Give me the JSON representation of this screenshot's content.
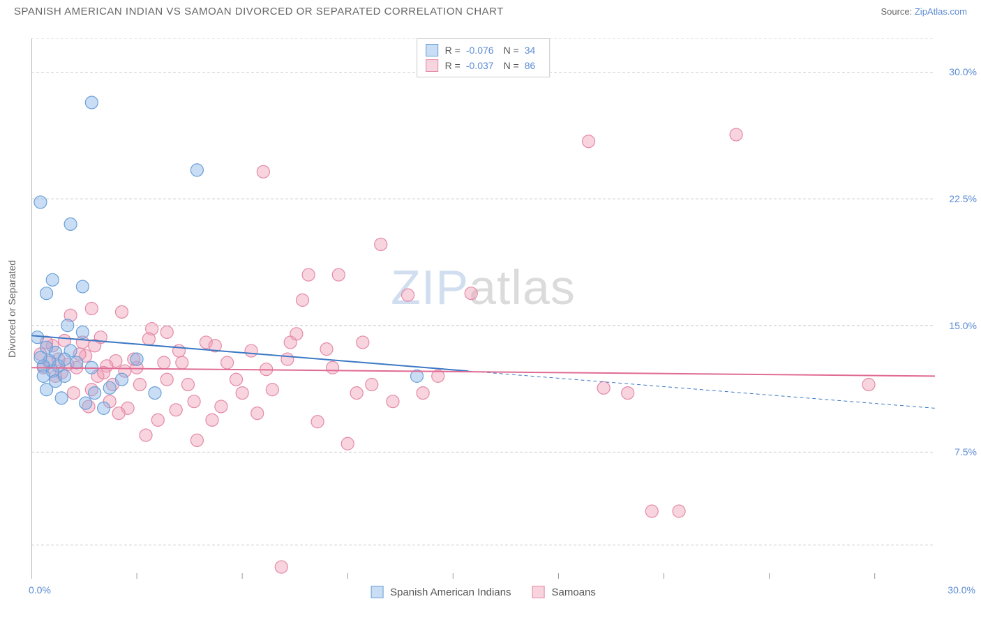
{
  "title": "SPANISH AMERICAN INDIAN VS SAMOAN DIVORCED OR SEPARATED CORRELATION CHART",
  "source_label": "Source: ",
  "source_link": "ZipAtlas.com",
  "ylabel": "Divorced or Separated",
  "watermark": {
    "zip": "ZIP",
    "atlas": "atlas"
  },
  "chart": {
    "type": "scatter",
    "xlim": [
      0,
      30
    ],
    "ylim": [
      0,
      32
    ],
    "x_origin_label": "0.0%",
    "x_max_label": "30.0%",
    "y_ticks": [
      7.5,
      15.0,
      22.5,
      30.0
    ],
    "y_tick_labels": [
      "7.5%",
      "15.0%",
      "22.5%",
      "30.0%"
    ],
    "x_minor_ticks": [
      3.5,
      7,
      10.5,
      14,
      17.5,
      21,
      24.5,
      28
    ],
    "grid_y": [
      2.0,
      7.5,
      15.0,
      22.5,
      30.0,
      32.0
    ],
    "grid_color": "#cccccc",
    "background_color": "#ffffff",
    "point_radius": 9,
    "series": [
      {
        "name": "Spanish American Indians",
        "fill": "rgba(135,180,230,0.45)",
        "stroke": "#6aa0d8",
        "R": "-0.076",
        "N": "34",
        "trend": {
          "x1": 0,
          "y1": 14.4,
          "x2": 14.5,
          "y2": 12.3,
          "x2_dash": 30,
          "y2_dash": 10.1,
          "color": "#3b78c4",
          "width": 2
        },
        "points": [
          [
            0.3,
            22.3
          ],
          [
            2.0,
            28.2
          ],
          [
            5.5,
            24.2
          ],
          [
            0.7,
            17.7
          ],
          [
            1.3,
            21.0
          ],
          [
            0.5,
            16.9
          ],
          [
            1.7,
            17.3
          ],
          [
            1.2,
            15.0
          ],
          [
            0.2,
            14.3
          ],
          [
            0.5,
            13.7
          ],
          [
            0.8,
            13.4
          ],
          [
            1.3,
            13.5
          ],
          [
            0.6,
            12.9
          ],
          [
            0.9,
            12.6
          ],
          [
            0.4,
            12.6
          ],
          [
            0.7,
            12.3
          ],
          [
            0.4,
            12.0
          ],
          [
            0.8,
            11.7
          ],
          [
            1.1,
            12.0
          ],
          [
            1.1,
            13.0
          ],
          [
            1.7,
            14.6
          ],
          [
            2.1,
            11.0
          ],
          [
            2.6,
            11.3
          ],
          [
            3.0,
            11.8
          ],
          [
            2.4,
            10.1
          ],
          [
            1.8,
            10.4
          ],
          [
            1.0,
            10.7
          ],
          [
            0.5,
            11.2
          ],
          [
            4.1,
            11.0
          ],
          [
            3.5,
            13.0
          ],
          [
            12.8,
            12.0
          ],
          [
            1.5,
            12.8
          ],
          [
            0.3,
            13.1
          ],
          [
            2.0,
            12.5
          ]
        ]
      },
      {
        "name": "Samoans",
        "fill": "rgba(240,160,185,0.45)",
        "stroke": "#e489a7",
        "R": "-0.037",
        "N": "86",
        "trend": {
          "x1": 0,
          "y1": 12.5,
          "x2": 30,
          "y2": 12.0,
          "color": "#e06b93",
          "width": 2
        },
        "points": [
          [
            7.7,
            24.1
          ],
          [
            11.6,
            19.8
          ],
          [
            18.5,
            25.9
          ],
          [
            23.4,
            26.3
          ],
          [
            14.6,
            16.9
          ],
          [
            9.2,
            18.0
          ],
          [
            10.2,
            18.0
          ],
          [
            8.6,
            14.0
          ],
          [
            7.3,
            13.5
          ],
          [
            7.0,
            11.0
          ],
          [
            6.3,
            10.2
          ],
          [
            6.0,
            9.4
          ],
          [
            5.5,
            8.2
          ],
          [
            5.0,
            12.8
          ],
          [
            4.5,
            14.6
          ],
          [
            4.0,
            14.8
          ],
          [
            3.5,
            12.5
          ],
          [
            3.0,
            15.8
          ],
          [
            2.8,
            12.9
          ],
          [
            2.5,
            12.6
          ],
          [
            2.2,
            12.0
          ],
          [
            2.0,
            11.2
          ],
          [
            1.8,
            13.2
          ],
          [
            1.5,
            12.5
          ],
          [
            1.2,
            12.7
          ],
          [
            1.0,
            12.2
          ],
          [
            0.8,
            12.0
          ],
          [
            0.6,
            12.8
          ],
          [
            0.4,
            12.5
          ],
          [
            0.3,
            13.3
          ],
          [
            9.8,
            13.6
          ],
          [
            11.0,
            14.0
          ],
          [
            12.0,
            10.5
          ],
          [
            12.5,
            16.8
          ],
          [
            13.5,
            12.0
          ],
          [
            8.0,
            11.2
          ],
          [
            8.5,
            13.0
          ],
          [
            9.5,
            9.3
          ],
          [
            10.5,
            8.0
          ],
          [
            10.8,
            11.0
          ],
          [
            4.8,
            10.0
          ],
          [
            4.2,
            9.4
          ],
          [
            3.8,
            8.5
          ],
          [
            3.2,
            10.1
          ],
          [
            2.9,
            9.8
          ],
          [
            2.3,
            14.3
          ],
          [
            5.8,
            14.0
          ],
          [
            6.5,
            12.8
          ],
          [
            1.7,
            14.0
          ],
          [
            2.1,
            13.8
          ],
          [
            2.6,
            10.5
          ],
          [
            3.4,
            13.0
          ],
          [
            4.5,
            11.8
          ],
          [
            5.2,
            11.5
          ],
          [
            19.0,
            11.3
          ],
          [
            19.8,
            11.0
          ],
          [
            27.8,
            11.5
          ],
          [
            20.6,
            4.0
          ],
          [
            21.5,
            4.0
          ],
          [
            8.3,
            0.7
          ],
          [
            1.4,
            11.0
          ],
          [
            1.9,
            10.2
          ],
          [
            0.9,
            13.0
          ],
          [
            0.7,
            13.8
          ],
          [
            1.1,
            14.1
          ],
          [
            1.6,
            13.3
          ],
          [
            3.6,
            11.5
          ],
          [
            4.9,
            13.5
          ],
          [
            6.8,
            11.8
          ],
          [
            7.5,
            9.8
          ],
          [
            9.0,
            16.5
          ],
          [
            10.0,
            12.5
          ],
          [
            11.3,
            11.5
          ],
          [
            13.0,
            11.0
          ],
          [
            2.4,
            12.2
          ],
          [
            2.7,
            11.5
          ],
          [
            3.1,
            12.3
          ],
          [
            3.9,
            14.2
          ],
          [
            4.4,
            12.8
          ],
          [
            5.4,
            10.5
          ],
          [
            6.1,
            13.8
          ],
          [
            7.8,
            12.4
          ],
          [
            8.8,
            14.5
          ],
          [
            1.3,
            15.6
          ],
          [
            0.5,
            14.0
          ],
          [
            2.0,
            16.0
          ]
        ]
      }
    ]
  },
  "legend_bottom": [
    {
      "label": "Spanish American Indians",
      "fill": "rgba(135,180,230,0.45)",
      "stroke": "#6aa0d8"
    },
    {
      "label": "Samoans",
      "fill": "rgba(240,160,185,0.45)",
      "stroke": "#e489a7"
    }
  ]
}
